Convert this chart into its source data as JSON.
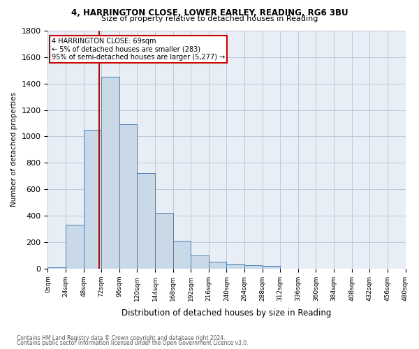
{
  "title1": "4, HARRINGTON CLOSE, LOWER EARLEY, READING, RG6 3BU",
  "title2": "Size of property relative to detached houses in Reading",
  "xlabel": "Distribution of detached houses by size in Reading",
  "ylabel": "Number of detached properties",
  "footnote1": "Contains HM Land Registry data © Crown copyright and database right 2024.",
  "footnote2": "Contains public sector information licensed under the Open Government Licence v3.0.",
  "annotation_title": "4 HARRINGTON CLOSE: 69sqm",
  "annotation_line1": "← 5% of detached houses are smaller (283)",
  "annotation_line2": "95% of semi-detached houses are larger (5,277) →",
  "bar_values": [
    10,
    330,
    1050,
    1450,
    1090,
    720,
    420,
    210,
    100,
    50,
    35,
    25,
    20,
    0,
    0,
    0,
    0,
    0,
    0,
    0
  ],
  "bin_edges": [
    0,
    24,
    48,
    72,
    96,
    120,
    144,
    168,
    192,
    216,
    240,
    264,
    288,
    312,
    336,
    360,
    384,
    408,
    432,
    456,
    480
  ],
  "tick_labels": [
    "0sqm",
    "24sqm",
    "48sqm",
    "72sqm",
    "96sqm",
    "120sqm",
    "144sqm",
    "168sqm",
    "192sqm",
    "216sqm",
    "240sqm",
    "264sqm",
    "288sqm",
    "312sqm",
    "336sqm",
    "360sqm",
    "384sqm",
    "408sqm",
    "432sqm",
    "456sqm",
    "480sqm"
  ],
  "bar_color": "#c9d9e8",
  "bar_edge_color": "#4a7fb5",
  "grid_color": "#c0c8d8",
  "vline_color": "#cc0000",
  "property_size": 69,
  "annotation_box_color": "#cc0000",
  "ylim": [
    0,
    1800
  ],
  "yticks": [
    0,
    200,
    400,
    600,
    800,
    1000,
    1200,
    1400,
    1600,
    1800
  ],
  "bg_color": "#e8eef5"
}
